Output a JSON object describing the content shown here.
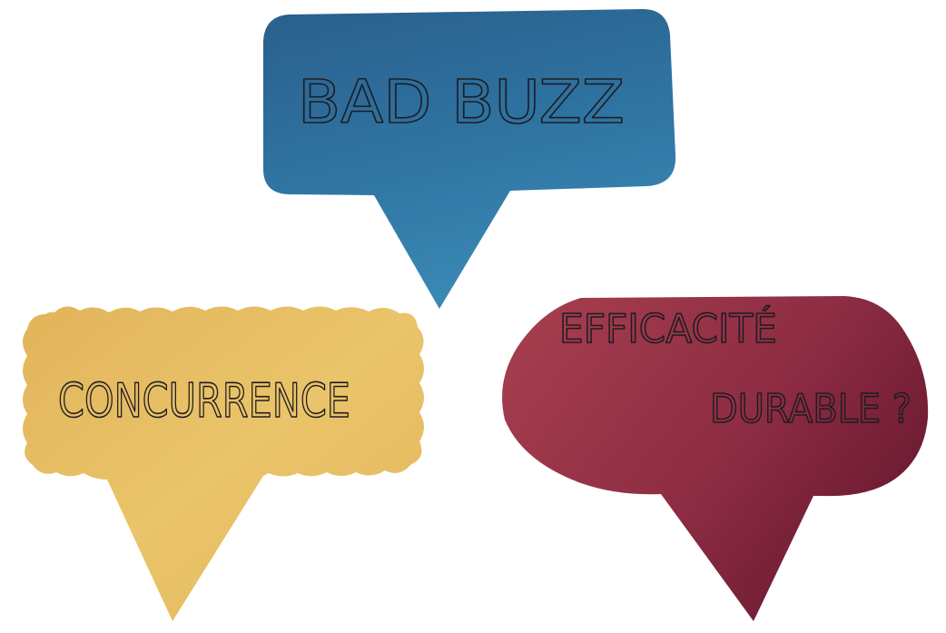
{
  "bubbles": {
    "blue": {
      "text": "BAD BUZZ",
      "color": "#2f6f9c"
    },
    "yellow": {
      "text": "CONCURRENCE",
      "color": "#e8bd5c"
    },
    "red": {
      "line1": "EFFICACITÉ",
      "line2": "DURABLE ?",
      "color": "#9a3147"
    }
  }
}
